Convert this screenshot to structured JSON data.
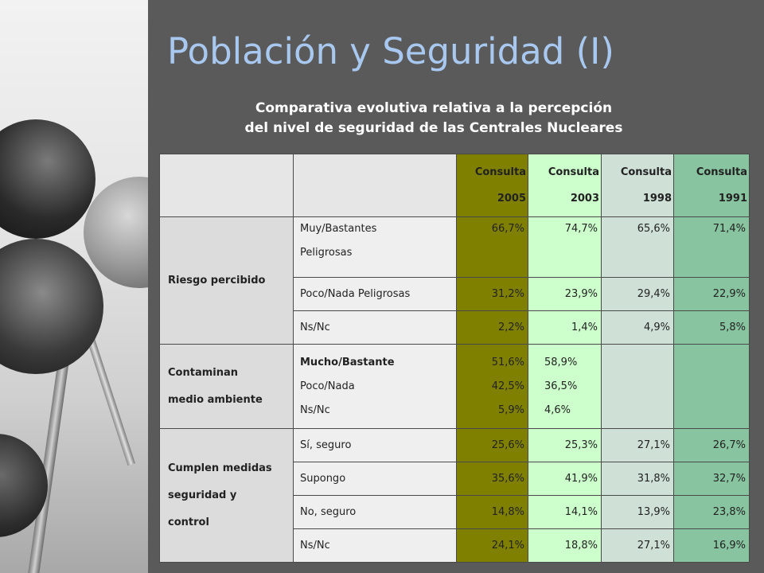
{
  "slide": {
    "title": "Población y Seguridad (I)",
    "subtitle_line1": "Comparativa evolutiva relativa a la percepción",
    "subtitle_line2": "del nivel de seguridad de las Centrales Nucleares"
  },
  "colors": {
    "background": "#5a5a5a",
    "title": "#a8c8f0",
    "col_2005": "#808000",
    "col_2003": "#ccffcc",
    "col_1998": "#cfe1d6",
    "col_1991": "#88c4a0"
  },
  "table": {
    "headers": [
      {
        "line1": "Consulta",
        "line2": "2005"
      },
      {
        "line1": "Consulta",
        "line2": "2003"
      },
      {
        "line1": "Consulta",
        "line2": "1998"
      },
      {
        "line1": "Consulta",
        "line2": "1991"
      }
    ],
    "groups": {
      "riesgo": {
        "label": "Riesgo percibido",
        "rows": [
          {
            "label_line1": "Muy/Bastantes",
            "label_line2": "Peligrosas",
            "v2005": "66,7%",
            "v2003": "74,7%",
            "v1998": "65,6%",
            "v1991": "71,4%"
          },
          {
            "label": "Poco/Nada Peligrosas",
            "v2005": "31,2%",
            "v2003": "23,9%",
            "v1998": "29,4%",
            "v1991": "22,9%"
          },
          {
            "label": "Ns/Nc",
            "v2005": "2,2%",
            "v2003": "1,4%",
            "v1998": "4,9%",
            "v1991": "5,8%"
          }
        ]
      },
      "contaminan": {
        "label_line1": "Contaminan",
        "label_line2": "medio ambiente",
        "labels": [
          "Mucho/Bastante",
          "Poco/Nada",
          "Ns/Nc"
        ],
        "v2005": [
          "51,6%",
          "42,5%",
          "5,9%"
        ],
        "v2003": [
          "58,9%",
          "36,5%",
          "4,6%"
        ]
      },
      "cumplen": {
        "label_line1": "Cumplen medidas",
        "label_line2": "seguridad y",
        "label_line3": "control",
        "rows": [
          {
            "label": "Sí, seguro",
            "v2005": "25,6%",
            "v2003": "25,3%",
            "v1998": "27,1%",
            "v1991": "26,7%"
          },
          {
            "label": "Supongo",
            "v2005": "35,6%",
            "v2003": "41,9%",
            "v1998": "31,8%",
            "v1991": "32,7%"
          },
          {
            "label": "No, seguro",
            "v2005": "14,8%",
            "v2003": "14,1%",
            "v1998": "13,9%",
            "v1991": "23,8%"
          },
          {
            "label": "Ns/Nc",
            "v2005": "24,1%",
            "v2003": "18,8%",
            "v1998": "27,1%",
            "v1991": "16,9%"
          }
        ]
      }
    }
  }
}
